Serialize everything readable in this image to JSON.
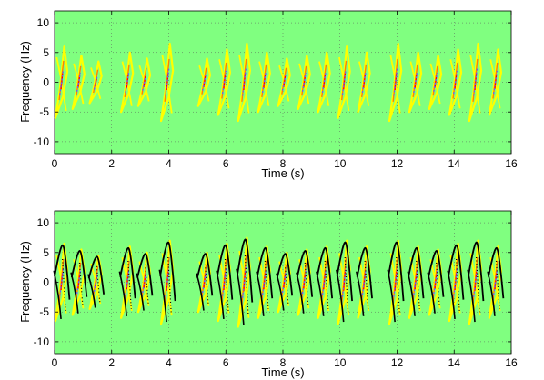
{
  "chart_data": [
    {
      "type": "heatmap",
      "title": "",
      "xlabel": "Time (s)",
      "ylabel": "Frequency (Hz)",
      "xlim": [
        0,
        16
      ],
      "ylim": [
        -12,
        12
      ],
      "xticks": [
        "0",
        "2",
        "4",
        "6",
        "8",
        "10",
        "12",
        "14",
        "16"
      ],
      "yticks": [
        "10",
        "5",
        "0",
        "-5",
        "-10"
      ],
      "grid": true,
      "background_color": "#80ff80",
      "description_of_marks": "time-frequency energy distribution",
      "contour_colors": [
        "#ffff00",
        "#ff8000",
        "#ff0000",
        "#6060ff"
      ],
      "burst_times": [
        0.25,
        0.85,
        1.45,
        2.55,
        3.15,
        3.95,
        5.25,
        5.95,
        6.65,
        7.35,
        8.05,
        8.75,
        9.45,
        10.15,
        10.85,
        11.95,
        12.65,
        13.35,
        14.05,
        14.75,
        15.45
      ],
      "burst_amplitudes": [
        6,
        4.5,
        3.5,
        5,
        4,
        6.5,
        4,
        5.5,
        6.5,
        5,
        4,
        4.5,
        5,
        6,
        5,
        6.5,
        5,
        4.5,
        5.5,
        6.5,
        5.5
      ]
    },
    {
      "type": "heatmap",
      "title": "",
      "xlabel": "Time (s)",
      "ylabel": "Frequency (Hz)",
      "xlim": [
        0,
        16
      ],
      "ylim": [
        -12,
        12
      ],
      "xticks": [
        "0",
        "2",
        "4",
        "6",
        "8",
        "10",
        "12",
        "14",
        "16"
      ],
      "yticks": [
        "10",
        "5",
        "0",
        "-5",
        "-10"
      ],
      "grid": true,
      "background_color": "#80ff80",
      "overlay_color": "#000000",
      "contour_colors": [
        "#ffff00",
        "#ff8000",
        "#ff0000",
        "#6060ff"
      ],
      "burst_times": [
        0.25,
        0.85,
        1.45,
        2.55,
        3.15,
        3.95,
        5.25,
        5.95,
        6.65,
        7.35,
        8.05,
        8.75,
        9.45,
        10.15,
        10.85,
        11.95,
        12.65,
        13.35,
        14.05,
        14.75,
        15.45
      ],
      "burst_amplitudes": [
        6.5,
        5.5,
        4.5,
        6,
        5,
        7,
        5,
        6.5,
        7.5,
        6,
        5,
        5.5,
        6,
        7,
        6,
        7,
        6,
        5.5,
        6.5,
        7,
        6
      ]
    }
  ]
}
